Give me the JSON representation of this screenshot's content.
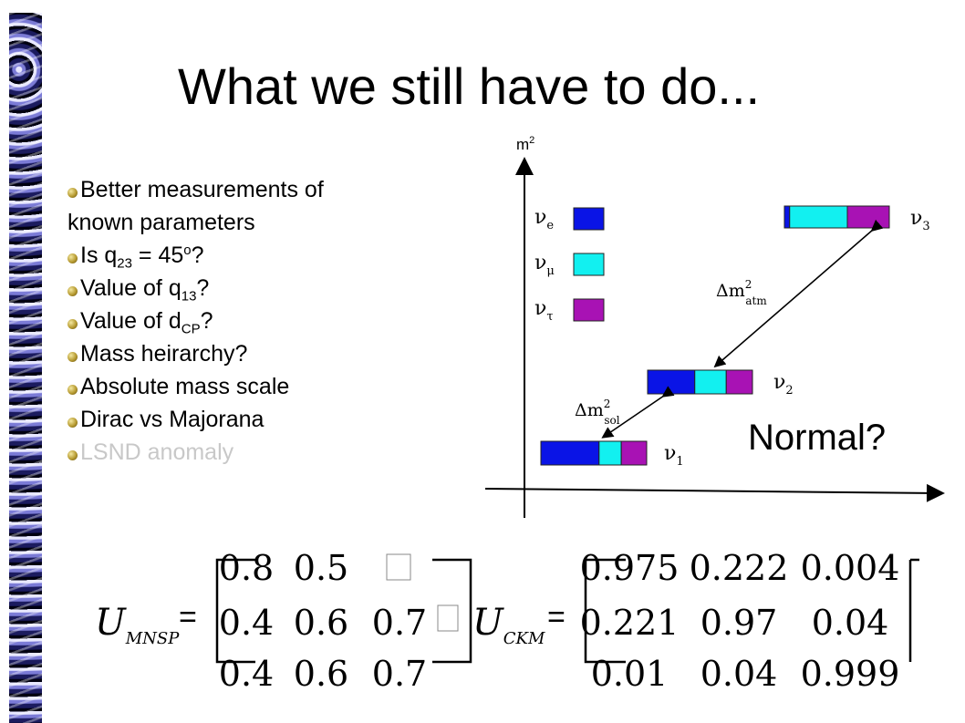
{
  "slide": {
    "title": "What we still have to do...",
    "bullets": [
      {
        "text_a": "Better measurements of",
        "text_b": "known parameters"
      },
      {
        "pre": "Is q",
        "sub": "23",
        "post": " = 45",
        "sup": "o",
        "end": "?"
      },
      {
        "pre": "Value of q",
        "sub": "13",
        "end": "?"
      },
      {
        "pre": "Value of d",
        "sub": "CP",
        "end": "?"
      },
      {
        "text": "Mass heirarchy?"
      },
      {
        "text": "Absolute mass scale"
      },
      {
        "text": "Dirac vs Majorana"
      },
      {
        "text": "LSND anomaly",
        "faded": true
      }
    ],
    "normal_label": "Normal?"
  },
  "diagram": {
    "axis_label": "m",
    "axis_label_sup": "2",
    "flavors": [
      {
        "label": "ν",
        "sub": "e",
        "color": "#0a14e6"
      },
      {
        "label": "ν",
        "sub": "μ",
        "color": "#12f0f0"
      },
      {
        "label": "ν",
        "sub": "τ",
        "color": "#a812b4"
      }
    ],
    "mass_states": [
      {
        "label": "ν",
        "sub": "3",
        "fractions": [
          0.05,
          0.55,
          0.4
        ]
      },
      {
        "label": "ν",
        "sub": "2",
        "fractions": [
          0.45,
          0.3,
          0.25
        ]
      },
      {
        "label": "ν",
        "sub": "1",
        "fractions": [
          0.55,
          0.21,
          0.24
        ]
      }
    ],
    "splittings": [
      {
        "label": "Δm",
        "sup": "2",
        "sub": "atm"
      },
      {
        "label": "Δm",
        "sup": "2",
        "sub": "sol"
      }
    ]
  },
  "matrices": {
    "mnsp": {
      "symbol": "U",
      "subscript": "MNSP",
      "equals": "=",
      "rows": [
        [
          "0.8",
          "0.5",
          ""
        ],
        [
          "0.4",
          "0.6",
          "0.7"
        ],
        [
          "0.4",
          "0.6",
          "0.7"
        ]
      ],
      "placeholder_glyph": "",
      "between_glyph": ""
    },
    "ckm": {
      "symbol": "U",
      "subscript": "CKM",
      "equals": "=",
      "rows": [
        [
          "0.975",
          "0.222",
          "0.004"
        ],
        [
          "0.221",
          "0.97",
          "0.04"
        ],
        [
          "0.01",
          "0.04",
          "0.999"
        ]
      ]
    }
  }
}
